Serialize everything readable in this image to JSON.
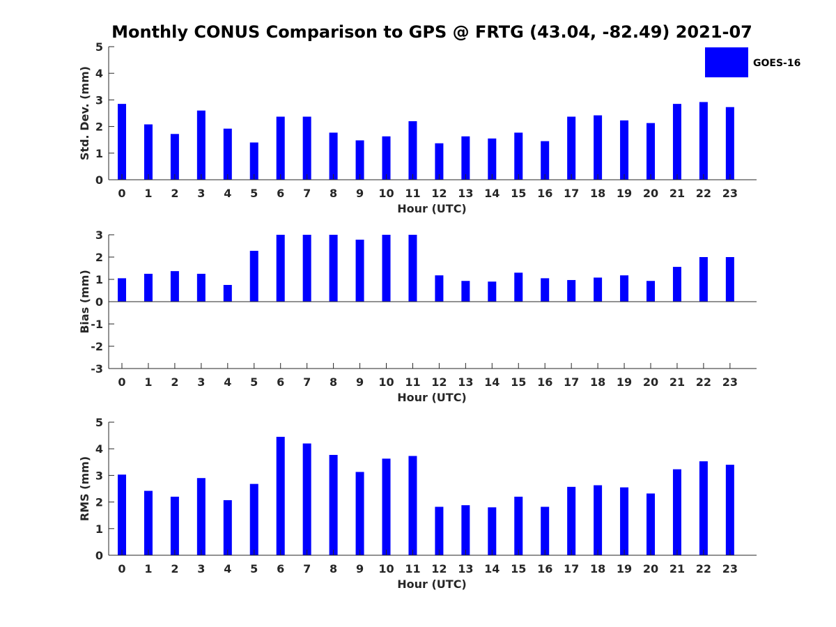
{
  "title": "Monthly CONUS Comparison to GPS @ FRTG (43.04, -82.49) 2021-07",
  "legend": {
    "label": "GOES-16",
    "color": "#0000ff"
  },
  "chart_data": [
    {
      "type": "bar",
      "ylabel": "Std. Dev. (mm)",
      "xlabel": "Hour (UTC)",
      "categories": [
        "0",
        "1",
        "2",
        "3",
        "4",
        "5",
        "6",
        "7",
        "8",
        "9",
        "10",
        "11",
        "12",
        "13",
        "14",
        "15",
        "16",
        "17",
        "18",
        "19",
        "20",
        "21",
        "22",
        "23"
      ],
      "ylim": [
        0,
        5
      ],
      "yticks": [
        "0",
        "1",
        "2",
        "3",
        "4",
        "5"
      ],
      "series": [
        {
          "name": "GOES-16",
          "color": "#0000ff",
          "values": [
            2.85,
            2.08,
            1.72,
            2.6,
            1.92,
            1.4,
            2.37,
            2.37,
            1.77,
            1.48,
            1.63,
            2.2,
            1.37,
            1.63,
            1.55,
            1.77,
            1.45,
            2.37,
            2.42,
            2.23,
            2.13,
            2.85,
            2.92,
            2.73
          ]
        }
      ]
    },
    {
      "type": "bar",
      "ylabel": "Bias (mm)",
      "xlabel": "Hour (UTC)",
      "categories": [
        "0",
        "1",
        "2",
        "3",
        "4",
        "5",
        "6",
        "7",
        "8",
        "9",
        "10",
        "11",
        "12",
        "13",
        "14",
        "15",
        "16",
        "17",
        "18",
        "19",
        "20",
        "21",
        "22",
        "23"
      ],
      "ylim": [
        -3,
        3
      ],
      "yticks": [
        "-3",
        "-2",
        "-1",
        "0",
        "1",
        "2",
        "3"
      ],
      "series": [
        {
          "name": "GOES-16",
          "color": "#0000ff",
          "values": [
            1.05,
            1.25,
            1.37,
            1.25,
            0.75,
            2.28,
            3.0,
            3.0,
            3.0,
            2.78,
            3.0,
            3.0,
            1.18,
            0.93,
            0.9,
            1.3,
            1.05,
            0.97,
            1.08,
            1.18,
            0.93,
            1.56,
            2.0,
            2.0
          ]
        }
      ]
    },
    {
      "type": "bar",
      "ylabel": "RMS (mm)",
      "xlabel": "Hour (UTC)",
      "categories": [
        "0",
        "1",
        "2",
        "3",
        "4",
        "5",
        "6",
        "7",
        "8",
        "9",
        "10",
        "11",
        "12",
        "13",
        "14",
        "15",
        "16",
        "17",
        "18",
        "19",
        "20",
        "21",
        "22",
        "23"
      ],
      "ylim": [
        0,
        5
      ],
      "yticks": [
        "0",
        "1",
        "2",
        "3",
        "4",
        "5"
      ],
      "series": [
        {
          "name": "GOES-16",
          "color": "#0000ff",
          "values": [
            3.03,
            2.42,
            2.2,
            2.9,
            2.07,
            2.68,
            4.45,
            4.2,
            3.77,
            3.13,
            3.63,
            3.73,
            1.82,
            1.88,
            1.8,
            2.2,
            1.82,
            2.57,
            2.63,
            2.55,
            2.32,
            3.23,
            3.53,
            3.4
          ]
        }
      ]
    }
  ]
}
